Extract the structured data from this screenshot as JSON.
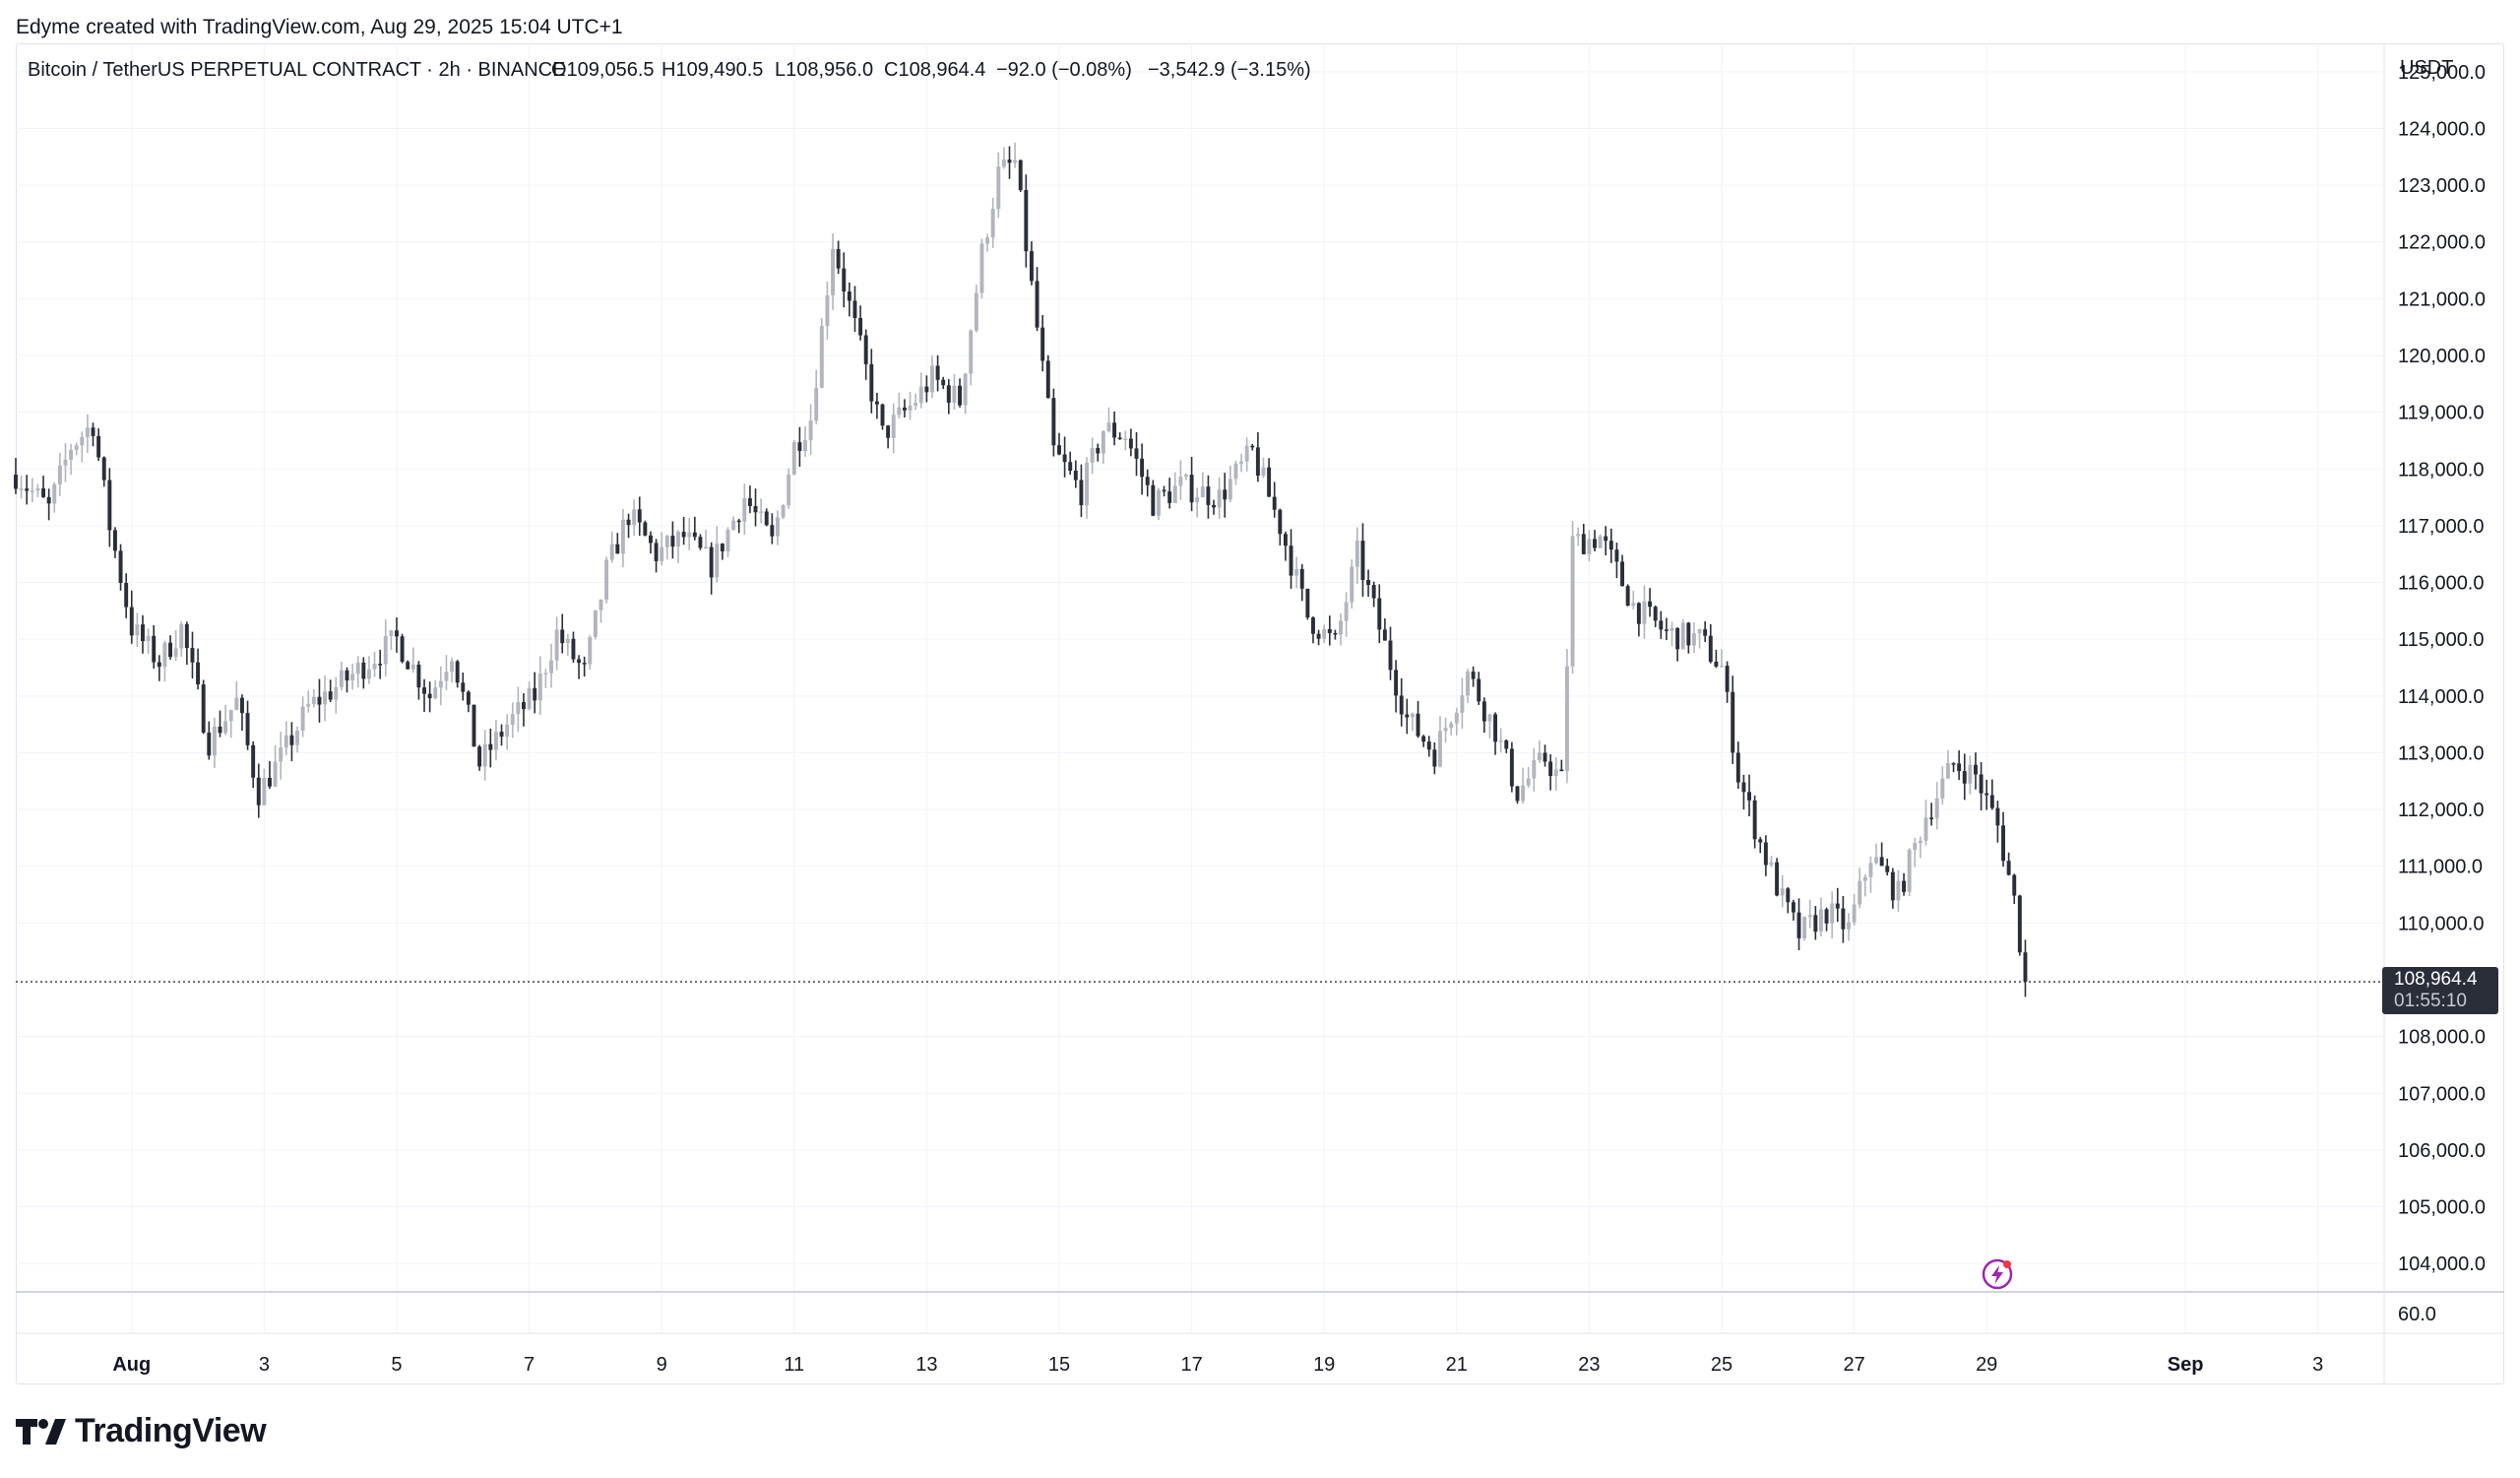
{
  "header": {
    "caption": "Edyme created with TradingView.com, Aug 29, 2025 15:04 UTC+1"
  },
  "legend": {
    "symbol": "Bitcoin / TetherUS PERPETUAL CONTRACT · 2h · BINANCE",
    "open": "O109,056.5",
    "high": "H109,490.5",
    "low": "L108,956.0",
    "close": "C108,964.4",
    "change": "−92.0 (−0.08%)",
    "change2": "−3,542.9 (−3.15%)"
  },
  "price_axis": {
    "currency": "USDT",
    "last_price": "108,964.4",
    "countdown": "01:55:10"
  },
  "volume_axis": {
    "label": "60.0"
  },
  "logo": {
    "text": "TradingView",
    "icon": "tradingview-logo-icon"
  },
  "badge": {
    "icon": "lightning-icon"
  },
  "colors": {
    "up": "#b2b5be",
    "down": "#2a2e39",
    "grid": "#f0f3fa",
    "last_price_bg": "#2a2e39",
    "badge": "#9c27b0"
  },
  "chart_data": {
    "type": "candlestick",
    "title": "Bitcoin / TetherUS PERPETUAL CONTRACT · 2h · BINANCE",
    "ylim": [
      103500,
      125500
    ],
    "y_ticks": [
      "125,000.0",
      "124,000.0",
      "123,000.0",
      "122,000.0",
      "121,000.0",
      "120,000.0",
      "119,000.0",
      "118,000.0",
      "117,000.0",
      "116,000.0",
      "115,000.0",
      "114,000.0",
      "113,000.0",
      "112,000.0",
      "111,000.0",
      "110,000.0",
      "108,000.0",
      "107,000.0",
      "106,000.0",
      "105,000.0",
      "104,000.0"
    ],
    "x_ticks": [
      {
        "label": "Aug",
        "date": "2025-08-01"
      },
      {
        "label": "3",
        "date": "2025-08-03"
      },
      {
        "label": "5",
        "date": "2025-08-05"
      },
      {
        "label": "7",
        "date": "2025-08-07"
      },
      {
        "label": "9",
        "date": "2025-08-09"
      },
      {
        "label": "11",
        "date": "2025-08-11"
      },
      {
        "label": "13",
        "date": "2025-08-13"
      },
      {
        "label": "15",
        "date": "2025-08-15"
      },
      {
        "label": "17",
        "date": "2025-08-17"
      },
      {
        "label": "19",
        "date": "2025-08-19"
      },
      {
        "label": "21",
        "date": "2025-08-21"
      },
      {
        "label": "23",
        "date": "2025-08-23"
      },
      {
        "label": "25",
        "date": "2025-08-25"
      },
      {
        "label": "27",
        "date": "2025-08-27"
      },
      {
        "label": "29",
        "date": "2025-08-29"
      },
      {
        "label": "Sep",
        "date": "2025-09-01"
      },
      {
        "label": "3",
        "date": "2025-09-03"
      }
    ],
    "x_range": [
      "2025-07-30T06:00",
      "2025-09-04T00:00"
    ],
    "last_price": 108964.4,
    "close_path": [
      [
        "2025-07-30T06:00",
        117900
      ],
      [
        "2025-07-30T18:00",
        117300
      ],
      [
        "2025-07-31T02:00",
        118400
      ],
      [
        "2025-07-31T10:00",
        118800
      ],
      [
        "2025-07-31T16:00",
        117000
      ],
      [
        "2025-08-01T00:00",
        115200
      ],
      [
        "2025-08-01T10:00",
        114600
      ],
      [
        "2025-08-01T18:00",
        115200
      ],
      [
        "2025-08-02T04:00",
        113200
      ],
      [
        "2025-08-02T14:00",
        113900
      ],
      [
        "2025-08-02T22:00",
        112300
      ],
      [
        "2025-08-03T06:00",
        112900
      ],
      [
        "2025-08-03T16:00",
        113800
      ],
      [
        "2025-08-04T06:00",
        114300
      ],
      [
        "2025-08-04T16:00",
        114700
      ],
      [
        "2025-08-05T00:00",
        115000
      ],
      [
        "2025-08-05T12:00",
        114000
      ],
      [
        "2025-08-05T20:00",
        114800
      ],
      [
        "2025-08-06T06:00",
        112800
      ],
      [
        "2025-08-06T16:00",
        113500
      ],
      [
        "2025-08-07T02:00",
        114000
      ],
      [
        "2025-08-07T10:00",
        115100
      ],
      [
        "2025-08-07T20:00",
        114400
      ],
      [
        "2025-08-08T04:00",
        116200
      ],
      [
        "2025-08-08T12:00",
        117200
      ],
      [
        "2025-08-08T22:00",
        116500
      ],
      [
        "2025-08-09T08:00",
        116800
      ],
      [
        "2025-08-09T18:00",
        116300
      ],
      [
        "2025-08-10T06:00",
        117500
      ],
      [
        "2025-08-10T16:00",
        116700
      ],
      [
        "2025-08-11T00:00",
        118400
      ],
      [
        "2025-08-11T06:00",
        118900
      ],
      [
        "2025-08-11T14:00",
        122000
      ],
      [
        "2025-08-11T22:00",
        120500
      ],
      [
        "2025-08-12T08:00",
        118600
      ],
      [
        "2025-08-12T18:00",
        119100
      ],
      [
        "2025-08-13T02:00",
        119600
      ],
      [
        "2025-08-13T12:00",
        119200
      ],
      [
        "2025-08-13T20:00",
        121800
      ],
      [
        "2025-08-14T02:00",
        123200
      ],
      [
        "2025-08-14T08:00",
        123400
      ],
      [
        "2025-08-14T14:00",
        121200
      ],
      [
        "2025-08-14T22:00",
        118300
      ],
      [
        "2025-08-15T08:00",
        117600
      ],
      [
        "2025-08-15T16:00",
        118700
      ],
      [
        "2025-08-16T00:00",
        118600
      ],
      [
        "2025-08-16T10:00",
        117400
      ],
      [
        "2025-08-16T20:00",
        117700
      ],
      [
        "2025-08-17T10:00",
        117500
      ],
      [
        "2025-08-17T22:00",
        118300
      ],
      [
        "2025-08-18T08:00",
        117000
      ],
      [
        "2025-08-18T18:00",
        115400
      ],
      [
        "2025-08-19T04:00",
        114900
      ],
      [
        "2025-08-19T12:00",
        116500
      ],
      [
        "2025-08-19T20:00",
        115200
      ],
      [
        "2025-08-20T06:00",
        113600
      ],
      [
        "2025-08-20T16:00",
        113000
      ],
      [
        "2025-08-21T04:00",
        114400
      ],
      [
        "2025-08-21T14:00",
        113400
      ],
      [
        "2025-08-21T22:00",
        112300
      ],
      [
        "2025-08-22T08:00",
        112900
      ],
      [
        "2025-08-22T14:00",
        112500
      ],
      [
        "2025-08-22T18:00",
        116700
      ],
      [
        "2025-08-23T04:00",
        116800
      ],
      [
        "2025-08-23T16:00",
        115600
      ],
      [
        "2025-08-24T04:00",
        115100
      ],
      [
        "2025-08-24T16:00",
        115000
      ],
      [
        "2025-08-25T00:00",
        114500
      ],
      [
        "2025-08-25T06:00",
        112600
      ],
      [
        "2025-08-25T14:00",
        111400
      ],
      [
        "2025-08-25T22:00",
        110400
      ],
      [
        "2025-08-26T04:00",
        109800
      ],
      [
        "2025-08-26T14:00",
        110200
      ],
      [
        "2025-08-26T22:00",
        109900
      ],
      [
        "2025-08-27T06:00",
        111200
      ],
      [
        "2025-08-27T16:00",
        110500
      ],
      [
        "2025-08-28T02:00",
        111900
      ],
      [
        "2025-08-28T12:00",
        112800
      ],
      [
        "2025-08-28T20:00",
        112600
      ],
      [
        "2025-08-29T04:00",
        111700
      ],
      [
        "2025-08-29T10:00",
        110400
      ],
      [
        "2025-08-29T14:00",
        108964.4
      ]
    ]
  }
}
